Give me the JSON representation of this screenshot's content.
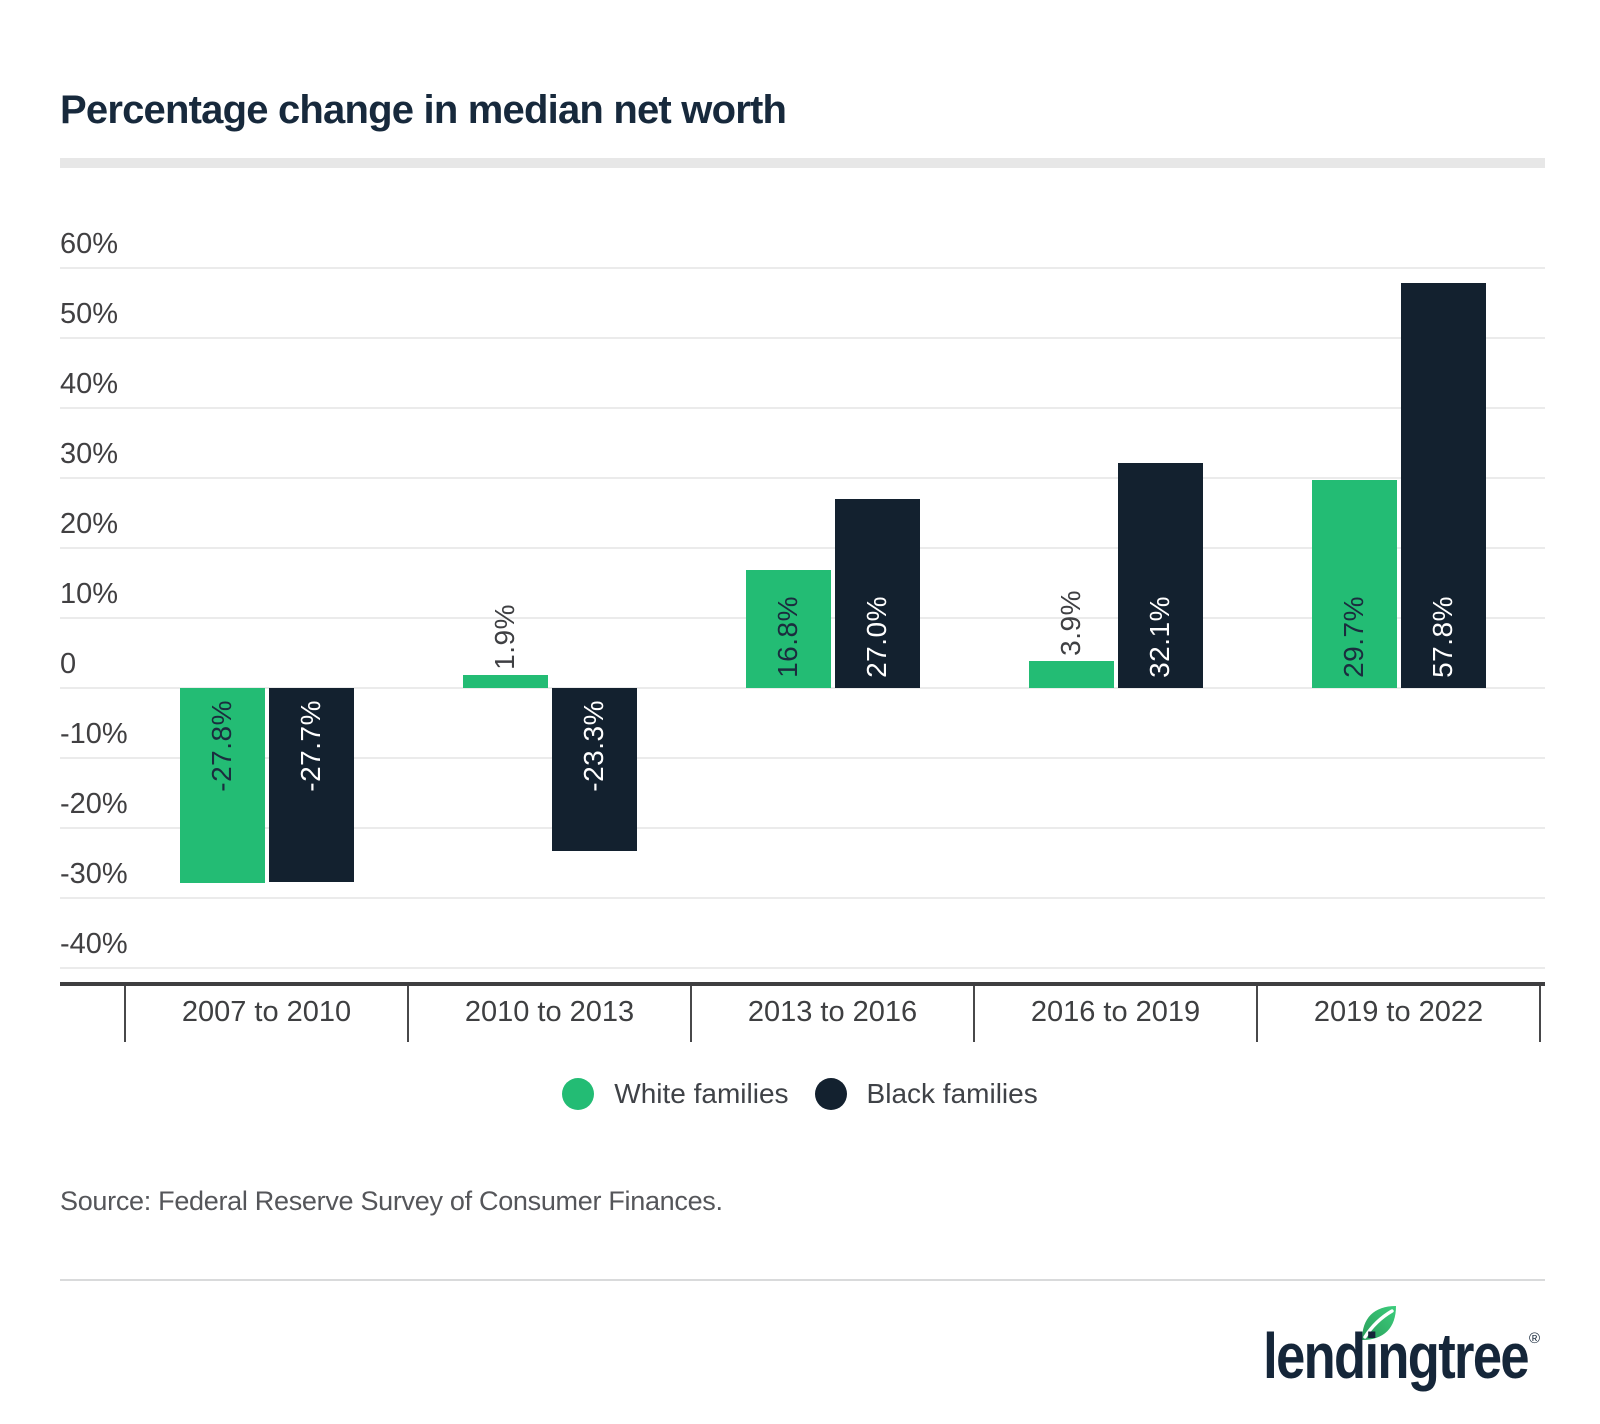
{
  "title": "Percentage change in median net worth",
  "source": "Source: Federal Reserve Survey of Consumer Finances.",
  "brand": {
    "wordmark": "lendingtree",
    "registered": "®"
  },
  "colors": {
    "green": "#23BC74",
    "navy": "#13212F",
    "title_text": "#17293C",
    "axis_text": "#414042",
    "grid_line": "#EBEBEB",
    "axis_line": "#3E3E40",
    "label_on_green": "#1B2C3E",
    "label_on_navy": "#FFFFFF",
    "label_outside": "#3F4043"
  },
  "legend": [
    {
      "label": "White families",
      "color": "#23BC74"
    },
    {
      "label": "Black families",
      "color": "#13212F"
    }
  ],
  "chart_data": {
    "type": "bar",
    "title": "Percentage change in median net worth",
    "categories": [
      "2007 to 2010",
      "2010 to 2013",
      "2013 to 2016",
      "2016 to 2019",
      "2019 to 2022"
    ],
    "series": [
      {
        "name": "White families",
        "color": "#23BC74",
        "values": [
          -27.8,
          1.9,
          16.8,
          3.9,
          29.7
        ],
        "labels": [
          "-27.8%",
          "1.9%",
          "16.8%",
          "3.9%",
          "29.7%"
        ]
      },
      {
        "name": "Black families",
        "color": "#13212F",
        "values": [
          -27.7,
          -23.3,
          27.0,
          32.1,
          57.8
        ],
        "labels": [
          "-27.7%",
          "-23.3%",
          "27.0%",
          "32.1%",
          "57.8%"
        ]
      }
    ],
    "xlabel": "",
    "ylabel": "",
    "ylim": [
      -40,
      60
    ],
    "yticks": [
      60,
      50,
      40,
      30,
      20,
      10,
      0,
      -10,
      -20,
      -30,
      -40
    ],
    "ytick_labels": [
      "60%",
      "50%",
      "40%",
      "30%",
      "20%",
      "10%",
      "0",
      "-10%",
      "-20%",
      "-30%",
      "-40%"
    ],
    "grid": true,
    "legend_position": "bottom"
  }
}
